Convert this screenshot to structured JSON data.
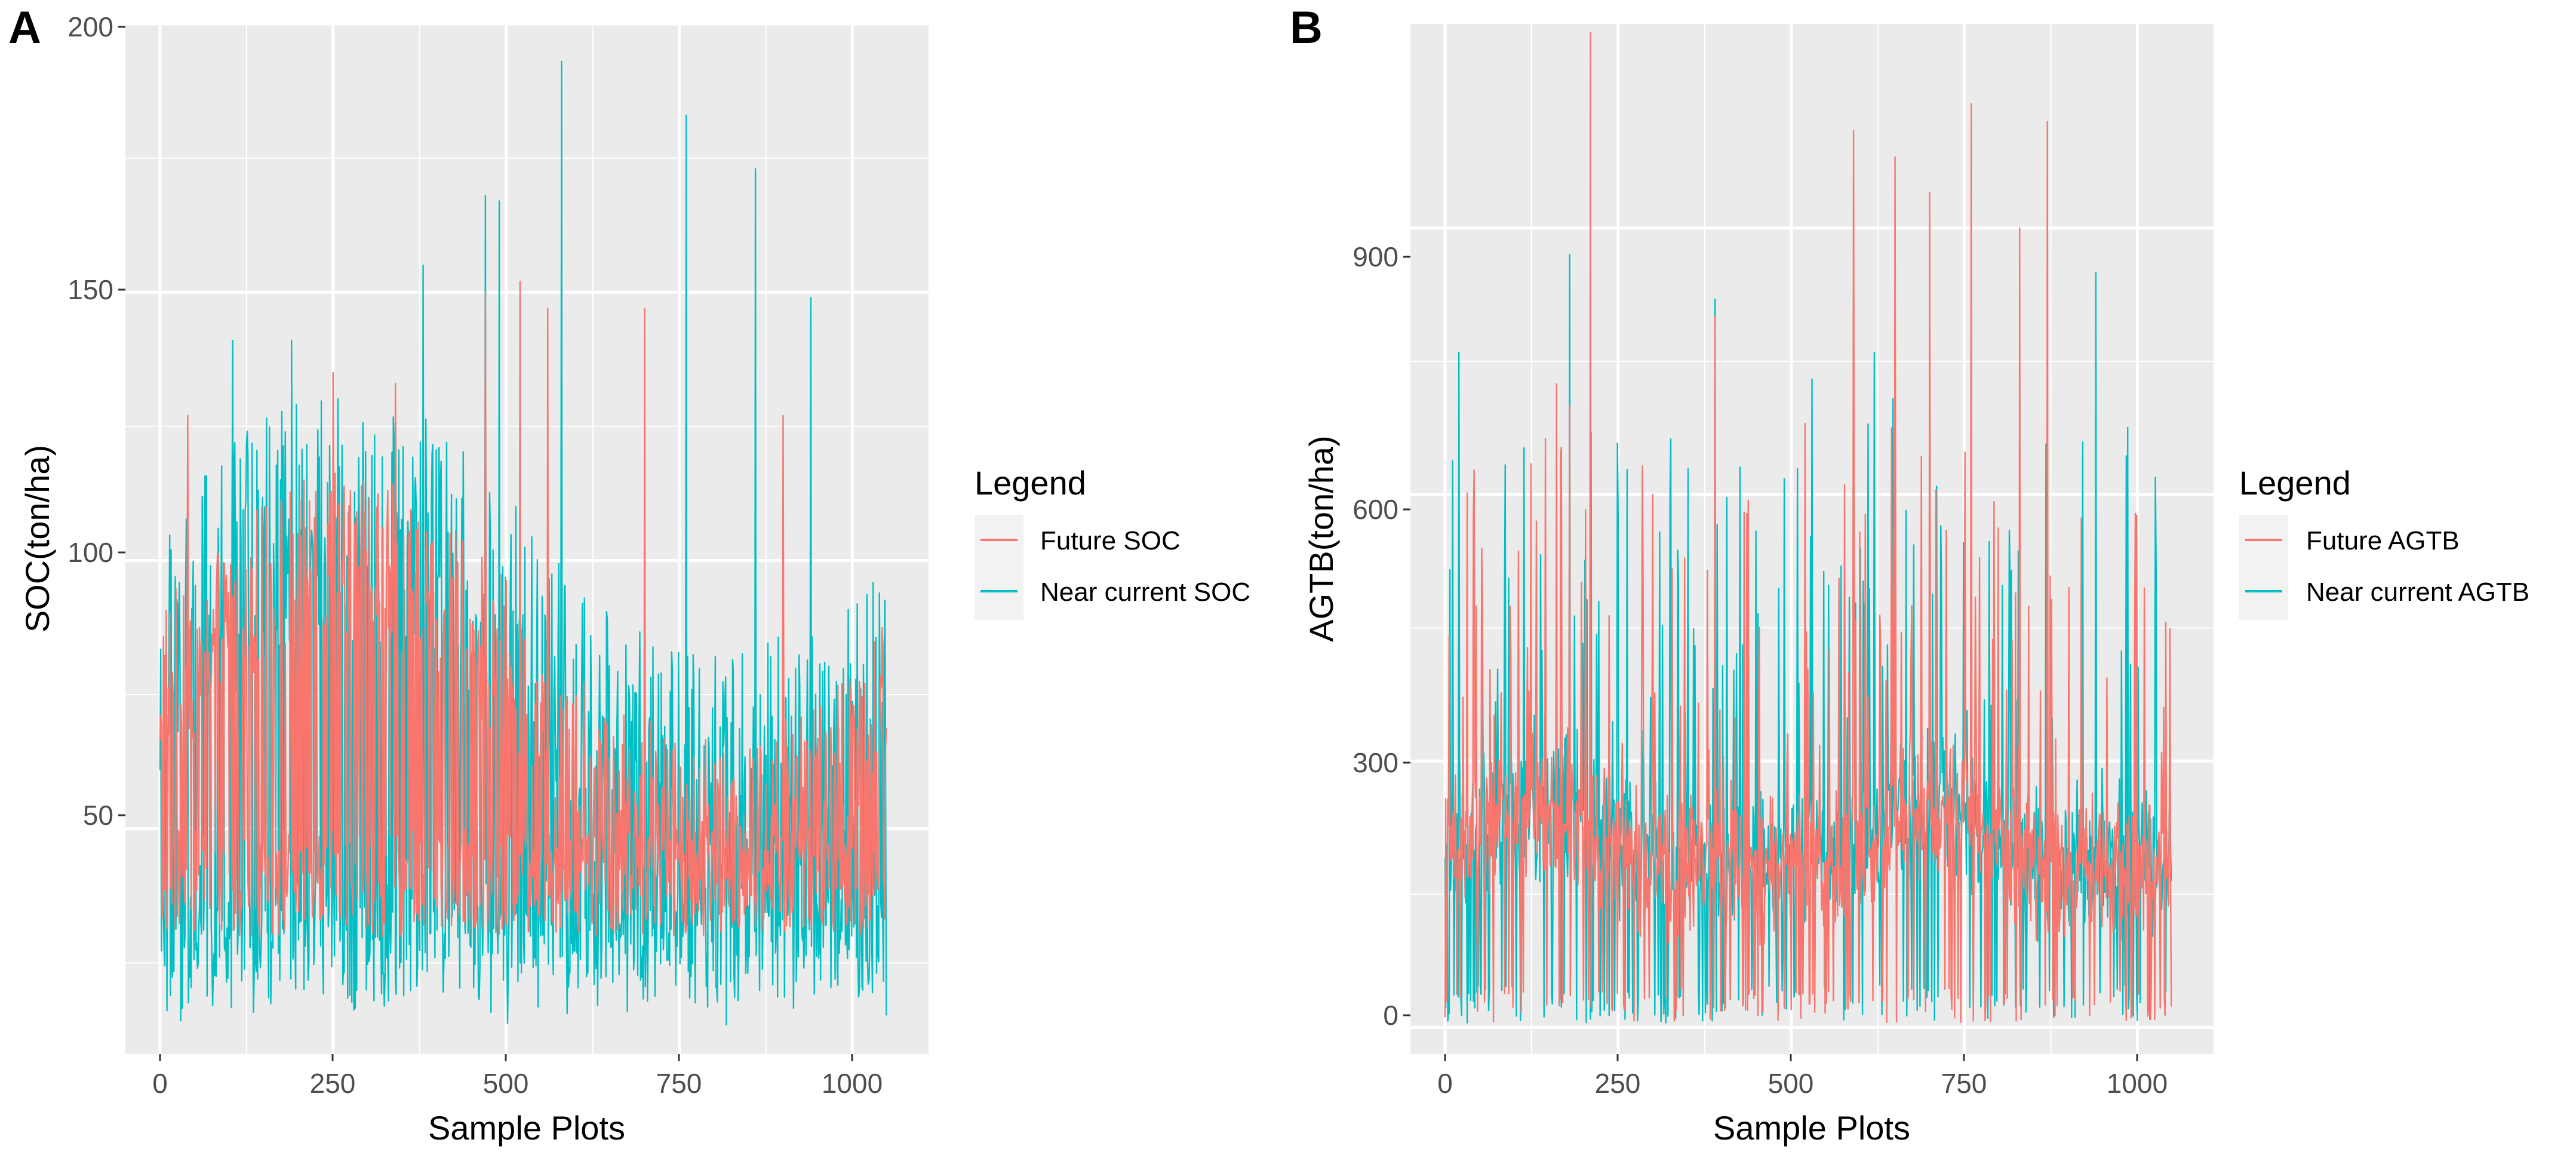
{
  "chart_data": [
    {
      "panel": "A",
      "type": "line",
      "xlabel": "Sample Plots",
      "ylabel": "SOC(ton/ha)",
      "xlim": [
        -50,
        1110
      ],
      "ylim": [
        8,
        200
      ],
      "xticks": [
        0,
        250,
        500,
        750,
        1000
      ],
      "yticks": [
        50,
        100,
        150,
        200
      ],
      "grid": true,
      "legend": {
        "title": "Legend",
        "position": "right"
      },
      "series": [
        {
          "name": "Future SOC",
          "color": "#F8766D",
          "x": [
            0,
            1050
          ],
          "range": [
            18,
            148
          ],
          "peaks": [
            [
              40,
              127
            ],
            [
              250,
              135
            ],
            [
              340,
              133
            ],
            [
              470,
              150
            ],
            [
              520,
              152
            ],
            [
              560,
              147
            ],
            [
              700,
              147
            ],
            [
              900,
              127
            ]
          ]
        },
        {
          "name": "Near current SOC",
          "color": "#00BFC4",
          "x": [
            0,
            1050
          ],
          "range": [
            13,
            193
          ],
          "peaks": [
            [
              105,
              141
            ],
            [
              190,
              141
            ],
            [
              380,
              155
            ],
            [
              470,
              168
            ],
            [
              490,
              167
            ],
            [
              580,
              193
            ],
            [
              760,
              183
            ],
            [
              860,
              173
            ],
            [
              940,
              149
            ]
          ]
        }
      ]
    },
    {
      "panel": "B",
      "type": "line",
      "xlabel": "Sample Plots",
      "ylabel": "AGTB(ton/ha)",
      "xlim": [
        -50,
        1110
      ],
      "ylim": [
        -30,
        1130
      ],
      "xticks": [
        0,
        250,
        500,
        750,
        1000
      ],
      "yticks": [
        0,
        300,
        600,
        900
      ],
      "grid": true,
      "legend": {
        "title": "Legend",
        "position": "right"
      },
      "series": [
        {
          "name": "Future AGTB",
          "color": "#F8766D",
          "x": [
            0,
            1050
          ],
          "range": [
            5,
            1120
          ],
          "peaks": [
            [
              210,
              1120
            ],
            [
              590,
              1010
            ],
            [
              760,
              1040
            ],
            [
              870,
              1020
            ],
            [
              650,
              980
            ],
            [
              700,
              940
            ],
            [
              830,
              900
            ],
            [
              180,
              700
            ],
            [
              390,
              800
            ],
            [
              520,
              680
            ]
          ]
        },
        {
          "name": "Near current AGTB",
          "color": "#00BFC4",
          "x": [
            0,
            1050
          ],
          "range": [
            5,
            870
          ],
          "peaks": [
            [
              20,
              760
            ],
            [
              180,
              870
            ],
            [
              390,
              820
            ],
            [
              620,
              760
            ],
            [
              940,
              850
            ],
            [
              530,
              730
            ]
          ]
        }
      ]
    }
  ],
  "panels": [
    {
      "letter": "A",
      "ylabel": "SOC(ton/ha)",
      "xlabel": "Sample Plots",
      "yticks": [
        "50",
        "100",
        "150",
        "200"
      ],
      "xticks": [
        "0",
        "250",
        "500",
        "750",
        "1000"
      ],
      "legend_title": "Legend",
      "legend_items": [
        "Future SOC",
        "Near current SOC"
      ]
    },
    {
      "letter": "B",
      "ylabel": "AGTB(ton/ha)",
      "xlabel": "Sample Plots",
      "yticks": [
        "0",
        "300",
        "600",
        "900"
      ],
      "xticks": [
        "0",
        "250",
        "500",
        "750",
        "1000"
      ],
      "legend_title": "Legend",
      "legend_items": [
        "Future AGTB",
        "Near current AGTB"
      ]
    }
  ],
  "colors": {
    "future": "#F8766D",
    "near_current": "#00BFC4",
    "panel_bg": "#EBEBEB",
    "grid": "#FFFFFF"
  }
}
